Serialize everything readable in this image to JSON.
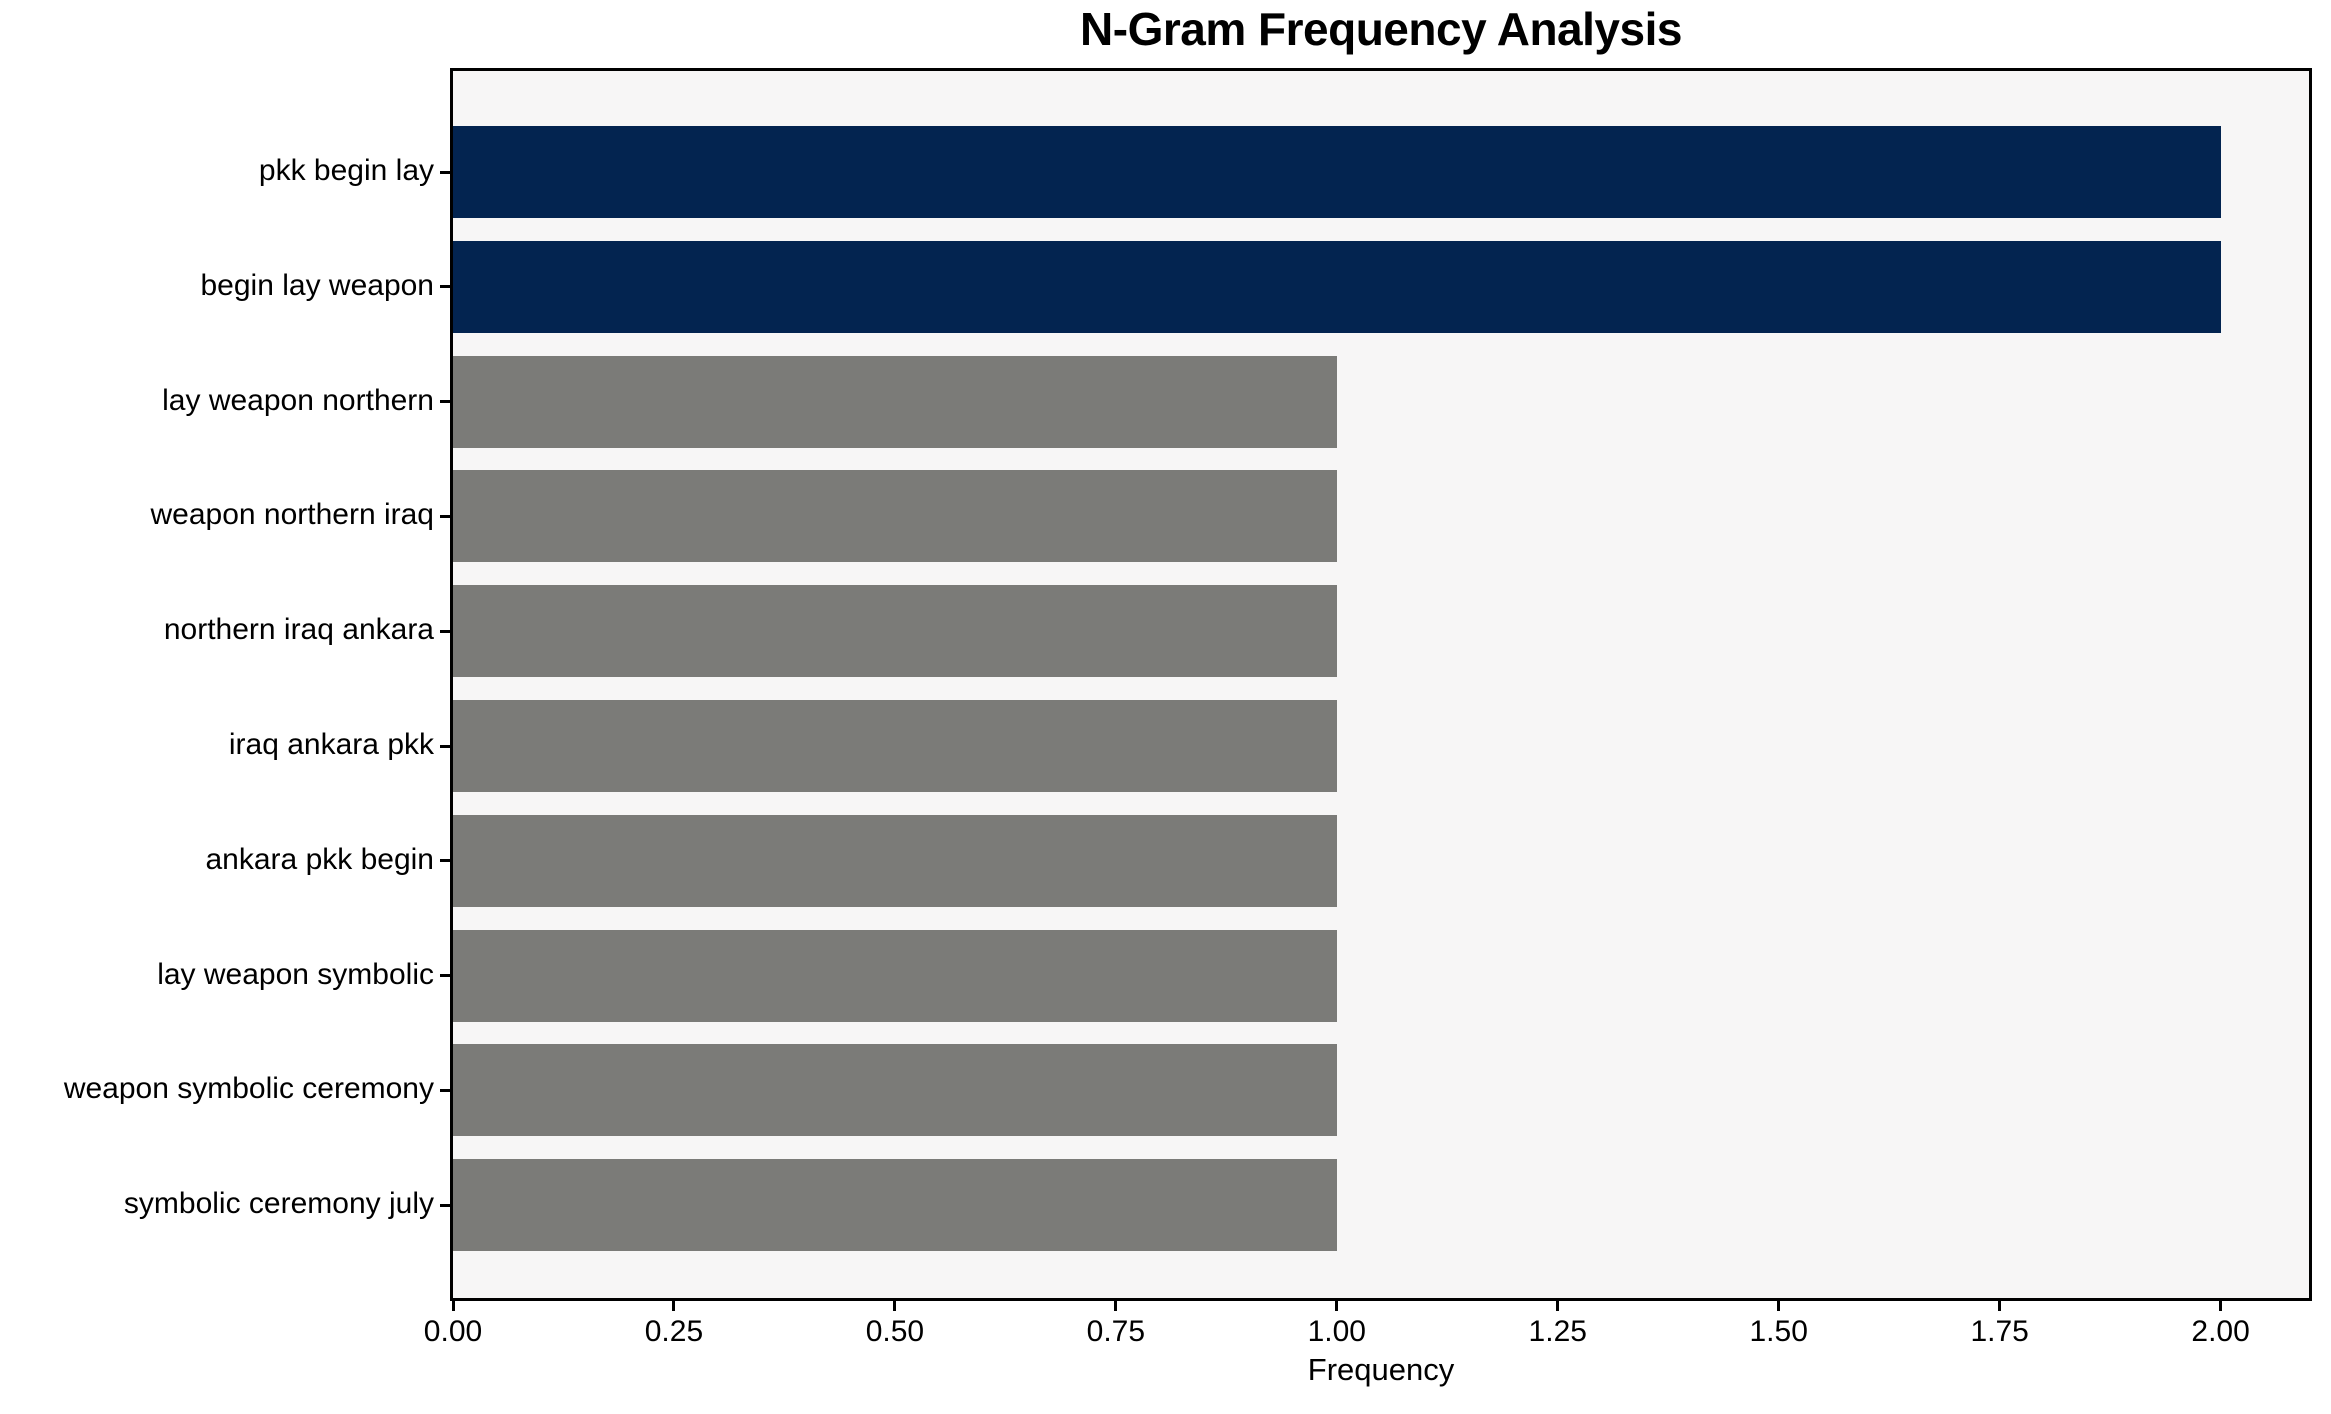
{
  "chart_data": {
    "type": "bar",
    "orientation": "horizontal",
    "title": "N-Gram Frequency Analysis",
    "xlabel": "Frequency",
    "ylabel": "",
    "categories": [
      "pkk begin lay",
      "begin lay weapon",
      "lay weapon northern",
      "weapon northern iraq",
      "northern iraq ankara",
      "iraq ankara pkk",
      "ankara pkk begin",
      "lay weapon symbolic",
      "weapon symbolic ceremony",
      "symbolic ceremony july"
    ],
    "values": [
      2,
      2,
      1,
      1,
      1,
      1,
      1,
      1,
      1,
      1
    ],
    "bar_colors": [
      "#032450",
      "#032450",
      "#7b7b78",
      "#7b7b78",
      "#7b7b78",
      "#7b7b78",
      "#7b7b78",
      "#7b7b78",
      "#7b7b78",
      "#7b7b78"
    ],
    "x_ticks": {
      "values": [
        0,
        0.25,
        0.5,
        0.75,
        1.0,
        1.25,
        1.5,
        1.75,
        2.0
      ],
      "labels": [
        "0.00",
        "0.25",
        "0.50",
        "0.75",
        "1.00",
        "1.25",
        "1.50",
        "1.75",
        "2.00"
      ]
    },
    "xlim": [
      0,
      2.1
    ],
    "grid": false,
    "legend": null,
    "colors": {
      "highlight": "#032450",
      "base": "#7b7b78",
      "plot_background": "#f7f6f6",
      "figure_background": "#ffffff",
      "spine": "#000000"
    }
  }
}
